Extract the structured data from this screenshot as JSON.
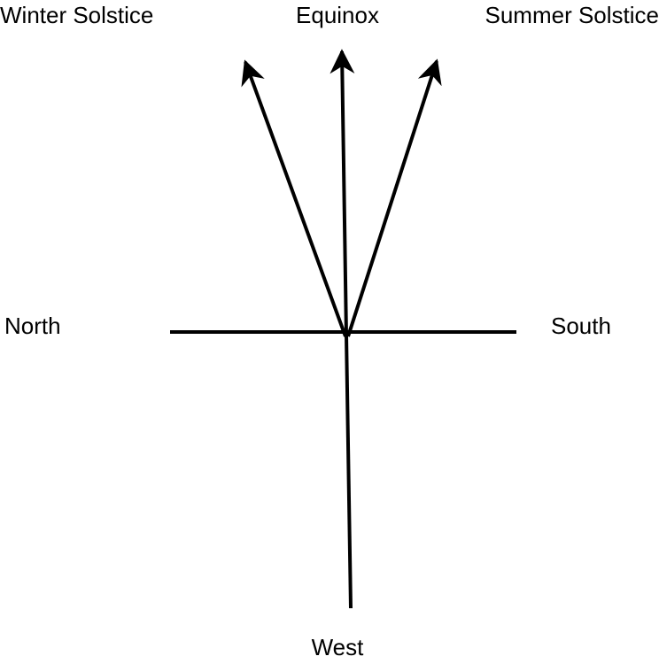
{
  "nodes": [
    {
      "label": "Winter Solstice"
    },
    {
      "label": "Equinox"
    },
    {
      "label": "Summer Solstice"
    },
    {
      "label": "North"
    },
    {
      "label": "South"
    },
    {
      "label": "West"
    }
  ]
}
